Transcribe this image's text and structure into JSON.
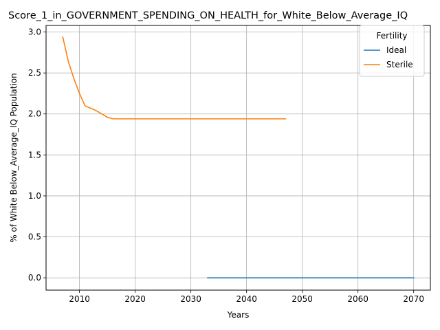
{
  "chart_data": {
    "type": "line",
    "title": "Score_1_in_GOVERNMENT_SPENDING_ON_HEALTH_for_White_Below_Average_IQ",
    "xlabel": "Years",
    "ylabel": "% of White Below_Average_IQ Population",
    "xlim": [
      2004,
      2073
    ],
    "ylim": [
      -0.15,
      3.08
    ],
    "xticks": [
      2010,
      2020,
      2030,
      2040,
      2050,
      2060,
      2070
    ],
    "yticks": [
      0.0,
      0.5,
      1.0,
      1.5,
      2.0,
      2.5,
      3.0
    ],
    "ytick_labels": [
      "0.0",
      "0.5",
      "1.0",
      "1.5",
      "2.0",
      "2.5",
      "3.0"
    ],
    "grid": true,
    "legend": {
      "title": "Fertility",
      "placement": "top-right"
    },
    "series": [
      {
        "name": "Ideal",
        "color": "#1f77b4",
        "x": [
          2033,
          2040,
          2050,
          2060,
          2070
        ],
        "y": [
          0.0,
          0.0,
          0.0,
          0.0,
          0.0
        ]
      },
      {
        "name": "Sterile",
        "color": "#ff7f0e",
        "x": [
          2007,
          2008,
          2009,
          2010,
          2011,
          2012,
          2013,
          2014,
          2015,
          2016,
          2017,
          2020,
          2025,
          2030,
          2035,
          2040,
          2045,
          2047
        ],
        "y": [
          2.94,
          2.64,
          2.43,
          2.25,
          2.1,
          2.07,
          2.04,
          2.0,
          1.96,
          1.94,
          1.94,
          1.94,
          1.94,
          1.94,
          1.94,
          1.94,
          1.94,
          1.94
        ]
      }
    ]
  }
}
